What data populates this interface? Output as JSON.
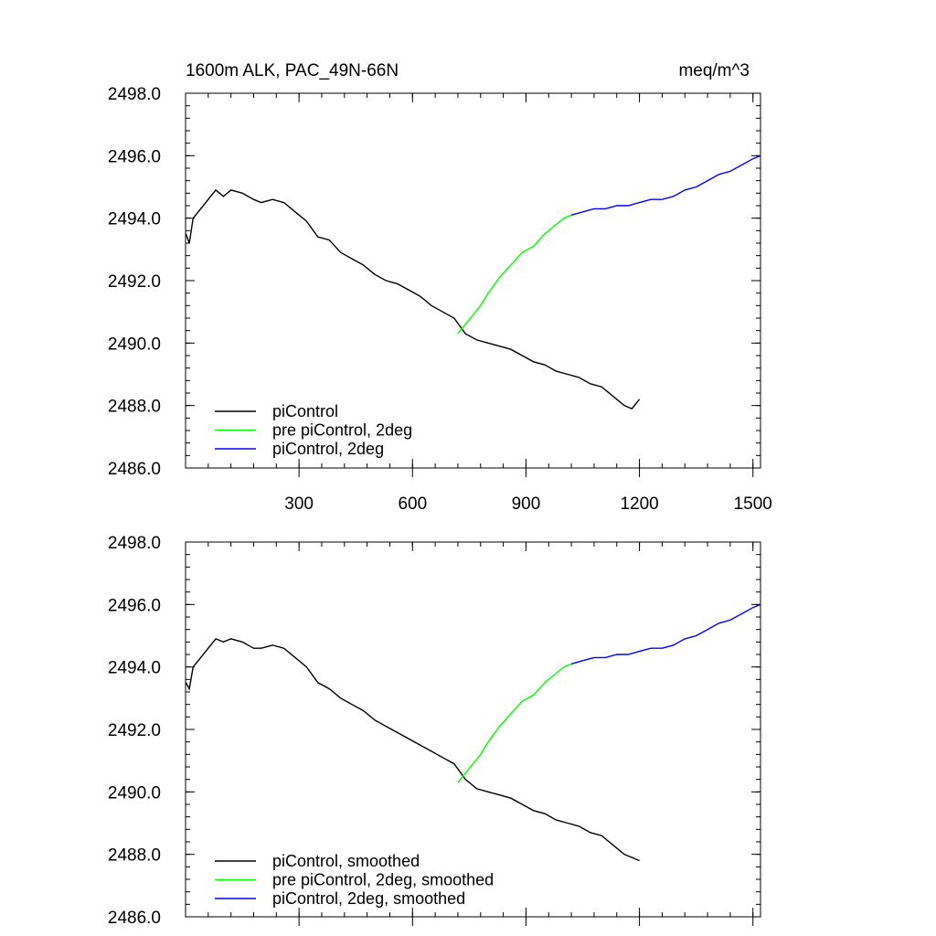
{
  "figure": {
    "title_left": "1600m ALK, PAC_49N-66N",
    "title_right": "meq/m^3"
  },
  "chart_data": [
    {
      "type": "line",
      "panel": "top",
      "title": "1600m ALK, PAC_49N-66N",
      "units": "meq/m^3",
      "xlabel": "",
      "ylabel": "",
      "xlim": [
        0,
        1520
      ],
      "ylim": [
        2486.0,
        2498.0
      ],
      "xticks": [
        300,
        600,
        900,
        1200,
        1500
      ],
      "xtick_labels": [
        "300",
        "600",
        "900",
        "1200",
        "1500"
      ],
      "yticks": [
        2486.0,
        2488.0,
        2490.0,
        2492.0,
        2494.0,
        2496.0,
        2498.0
      ],
      "ytick_labels": [
        "2486.0",
        "2488.0",
        "2490.0",
        "2492.0",
        "2494.0",
        "2496.0",
        "2498.0"
      ],
      "grid": false,
      "legend_position": "bottom-left",
      "series": [
        {
          "name": "piControl",
          "color": "#000000",
          "x": [
            1,
            10,
            20,
            40,
            60,
            80,
            100,
            120,
            150,
            180,
            200,
            230,
            260,
            290,
            320,
            350,
            380,
            410,
            440,
            470,
            500,
            530,
            560,
            590,
            620,
            650,
            680,
            710,
            740,
            770,
            800,
            830,
            860,
            890,
            920,
            950,
            980,
            1010,
            1040,
            1070,
            1100,
            1130,
            1160,
            1180,
            1200
          ],
          "y": [
            2493.5,
            2493.2,
            2494.0,
            2494.3,
            2494.6,
            2494.9,
            2494.7,
            2494.9,
            2494.8,
            2494.6,
            2494.5,
            2494.6,
            2494.5,
            2494.2,
            2493.9,
            2493.4,
            2493.3,
            2492.9,
            2492.7,
            2492.5,
            2492.2,
            2492.0,
            2491.9,
            2491.7,
            2491.5,
            2491.2,
            2491.0,
            2490.8,
            2490.3,
            2490.1,
            2490.0,
            2489.9,
            2489.8,
            2489.6,
            2489.4,
            2489.3,
            2489.1,
            2489.0,
            2488.9,
            2488.7,
            2488.6,
            2488.3,
            2488.0,
            2487.9,
            2488.2
          ]
        },
        {
          "name": "pre piControl, 2deg",
          "color": "#00ff00",
          "x": [
            720,
            740,
            760,
            780,
            800,
            830,
            860,
            890,
            920,
            950,
            980,
            1000,
            1020
          ],
          "y": [
            2490.3,
            2490.6,
            2490.9,
            2491.2,
            2491.6,
            2492.1,
            2492.5,
            2492.9,
            2493.1,
            2493.5,
            2493.8,
            2494.0,
            2494.1
          ]
        },
        {
          "name": "piControl, 2deg",
          "color": "#0000ff",
          "x": [
            1020,
            1050,
            1080,
            1110,
            1140,
            1170,
            1200,
            1230,
            1260,
            1290,
            1320,
            1350,
            1380,
            1410,
            1440,
            1470,
            1500,
            1520
          ],
          "y": [
            2494.1,
            2494.2,
            2494.3,
            2494.3,
            2494.4,
            2494.4,
            2494.5,
            2494.6,
            2494.6,
            2494.7,
            2494.9,
            2495.0,
            2495.2,
            2495.4,
            2495.5,
            2495.7,
            2495.9,
            2496.0
          ]
        }
      ],
      "legend": [
        "piControl",
        "pre piControl, 2deg",
        "piControl, 2deg"
      ]
    },
    {
      "type": "line",
      "panel": "bottom",
      "title": "",
      "xlabel": "",
      "ylabel": "",
      "xlim": [
        0,
        1520
      ],
      "ylim": [
        2486.0,
        2498.0
      ],
      "yticks": [
        2486.0,
        2488.0,
        2490.0,
        2492.0,
        2494.0,
        2496.0,
        2498.0
      ],
      "ytick_labels": [
        "2486.0",
        "2488.0",
        "2490.0",
        "2492.0",
        "2494.0",
        "2496.0",
        "2498.0"
      ],
      "grid": false,
      "legend_position": "bottom-left",
      "series": [
        {
          "name": "piControl, smoothed",
          "color": "#000000",
          "x": [
            1,
            10,
            20,
            40,
            60,
            80,
            100,
            120,
            150,
            180,
            200,
            230,
            260,
            290,
            320,
            350,
            380,
            410,
            440,
            470,
            500,
            530,
            560,
            590,
            620,
            650,
            680,
            710,
            740,
            770,
            800,
            830,
            860,
            890,
            920,
            950,
            980,
            1010,
            1040,
            1070,
            1100,
            1130,
            1160,
            1180,
            1200
          ],
          "y": [
            2493.5,
            2493.3,
            2494.0,
            2494.3,
            2494.6,
            2494.9,
            2494.8,
            2494.9,
            2494.8,
            2494.6,
            2494.6,
            2494.7,
            2494.6,
            2494.3,
            2494.0,
            2493.5,
            2493.3,
            2493.0,
            2492.8,
            2492.6,
            2492.3,
            2492.1,
            2491.9,
            2491.7,
            2491.5,
            2491.3,
            2491.1,
            2490.9,
            2490.4,
            2490.1,
            2490.0,
            2489.9,
            2489.8,
            2489.6,
            2489.4,
            2489.3,
            2489.1,
            2489.0,
            2488.9,
            2488.7,
            2488.6,
            2488.3,
            2488.0,
            2487.9,
            2487.8
          ]
        },
        {
          "name": "pre piControl, 2deg, smoothed",
          "color": "#00ff00",
          "x": [
            720,
            740,
            760,
            780,
            800,
            830,
            860,
            890,
            920,
            950,
            980,
            1000,
            1020
          ],
          "y": [
            2490.3,
            2490.6,
            2490.9,
            2491.2,
            2491.6,
            2492.1,
            2492.5,
            2492.9,
            2493.1,
            2493.5,
            2493.8,
            2494.0,
            2494.1
          ]
        },
        {
          "name": "piControl, 2deg, smoothed",
          "color": "#0000ff",
          "x": [
            1020,
            1050,
            1080,
            1110,
            1140,
            1170,
            1200,
            1230,
            1260,
            1290,
            1320,
            1350,
            1380,
            1410,
            1440,
            1470,
            1500,
            1520
          ],
          "y": [
            2494.1,
            2494.2,
            2494.3,
            2494.3,
            2494.4,
            2494.4,
            2494.5,
            2494.6,
            2494.6,
            2494.7,
            2494.9,
            2495.0,
            2495.2,
            2495.4,
            2495.5,
            2495.7,
            2495.9,
            2496.0
          ]
        }
      ],
      "legend": [
        "piControl, smoothed",
        "pre piControl, 2deg, smoothed",
        "piControl, 2deg, smoothed"
      ]
    }
  ]
}
